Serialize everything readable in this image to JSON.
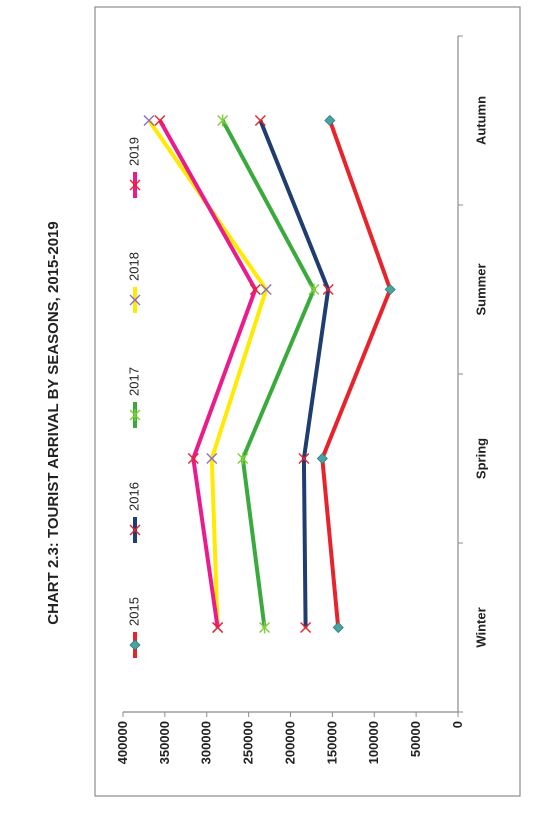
{
  "chart_data": {
    "type": "line",
    "title": "CHART 2.3: TOURIST ARRIVAL BY SEASONS, 2015-2019",
    "xlabel": "",
    "ylabel": "",
    "categories": [
      "Winter",
      "Spring",
      "Summer",
      "Autumn"
    ],
    "ylim": [
      0,
      400000
    ],
    "yticks": [
      "0",
      "50000",
      "100000",
      "150000",
      "200000",
      "250000",
      "300000",
      "350000",
      "400000"
    ],
    "grid": false,
    "legend_position": "top",
    "rotated": "90deg counter-clockwise",
    "series": [
      {
        "name": "2015",
        "color": "#e8232b",
        "marker": "diamond",
        "values": [
          143000,
          162000,
          81000,
          153000
        ]
      },
      {
        "name": "2016",
        "color": "#1f3d6e",
        "marker": "x",
        "values": [
          182000,
          184000,
          155000,
          236000
        ]
      },
      {
        "name": "2017",
        "color": "#3aaa3c",
        "marker": "asterisk",
        "values": [
          231000,
          257000,
          172000,
          281000
        ]
      },
      {
        "name": "2018",
        "color": "#ffea00",
        "marker": "x",
        "values": [
          287000,
          294000,
          229000,
          369000
        ]
      },
      {
        "name": "2019",
        "color": "#ea1c8c",
        "marker": "x",
        "values": [
          287000,
          316000,
          242000,
          356000
        ]
      }
    ]
  }
}
